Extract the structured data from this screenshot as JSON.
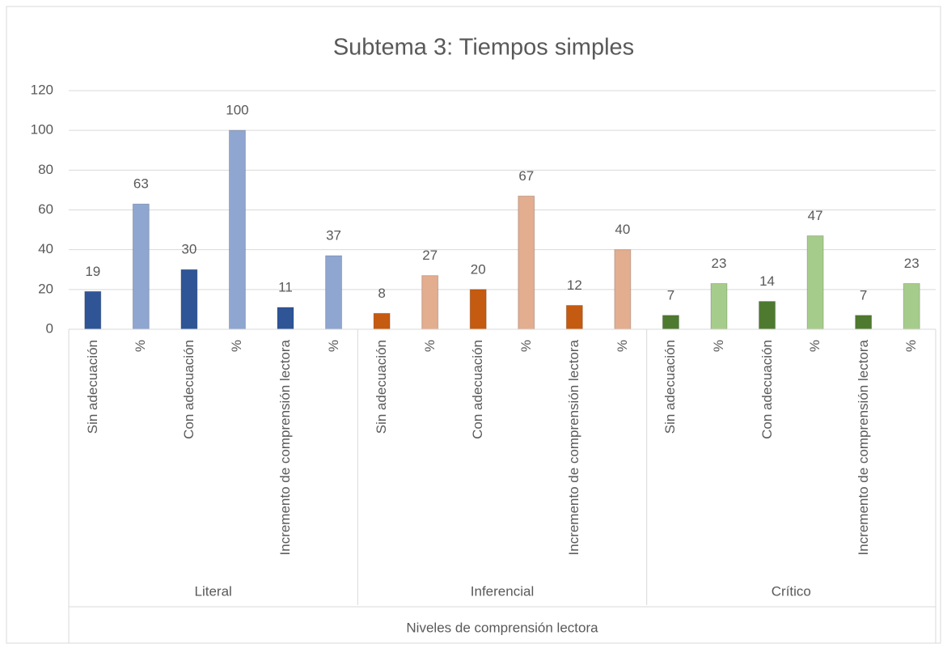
{
  "chart_data": {
    "type": "bar",
    "title": "Subtema 3: Tiempos simples",
    "categories": [
      "Sin adecuación",
      "%",
      "Con adecuación",
      "%",
      "Incremento de comprensión lectora",
      "%",
      "Sin adecuación",
      "%",
      "Con adecuación",
      "%",
      "Incremento de comprensión lectora",
      "%",
      "Sin adecuación",
      "%",
      "Con adecuación",
      "%",
      "Incremento de comprensión lectora",
      "%"
    ],
    "groups": [
      "Literal",
      "Inferencial",
      "Crítico"
    ],
    "x_title": "Niveles de comprensión lectora",
    "values": [
      19,
      63,
      30,
      100,
      11,
      37,
      8,
      27,
      20,
      67,
      12,
      40,
      7,
      23,
      14,
      47,
      7,
      23
    ],
    "colors": [
      "#2f5597",
      "#8fa6d0",
      "#2f5597",
      "#8fa6d0",
      "#2f5597",
      "#8fa6d0",
      "#c55a11",
      "#e3ad90",
      "#c55a11",
      "#e3ad90",
      "#c55a11",
      "#e3ad90",
      "#4e7a30",
      "#a6cc8c",
      "#4e7a30",
      "#a6cc8c",
      "#4e7a30",
      "#a6cc8c"
    ],
    "ylim": [
      0,
      120
    ],
    "yticks": [
      0,
      20,
      40,
      60,
      80,
      100,
      120
    ],
    "grid": true,
    "data_labels": true
  }
}
